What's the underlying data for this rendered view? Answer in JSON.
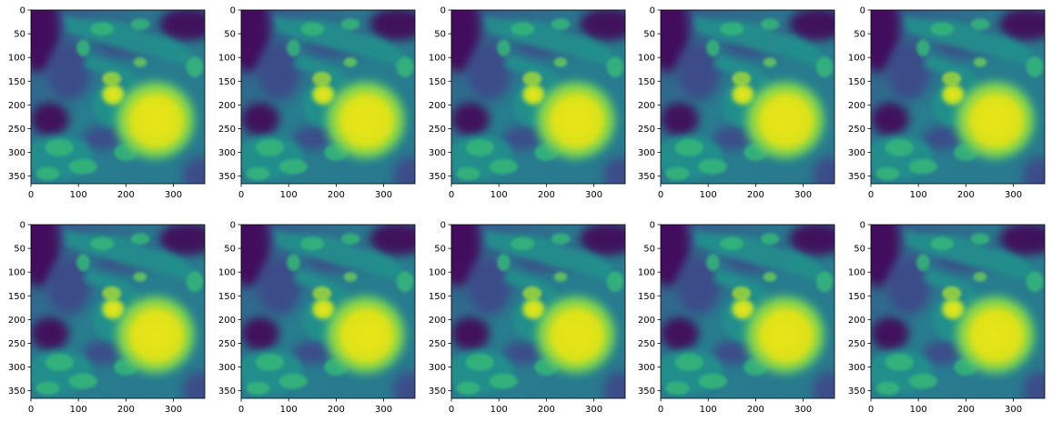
{
  "figure": {
    "layout": {
      "rows": 2,
      "cols": 5
    },
    "colormap": "viridis",
    "colors": {
      "low": "#440154",
      "mid_low": "#3b528b",
      "mid": "#21918c",
      "mid_high": "#5ec962",
      "high": "#fde725",
      "axis": "#000000",
      "background": "#ffffff"
    }
  },
  "chart_data": [
    {
      "type": "heatmap",
      "xticks": [
        0,
        100,
        200,
        300
      ],
      "yticks": [
        0,
        50,
        100,
        150,
        200,
        250,
        300,
        350
      ],
      "xlim": [
        0,
        366
      ],
      "ylim": [
        366,
        0
      ],
      "grid": false
    },
    {
      "type": "heatmap",
      "xticks": [
        0,
        100,
        200,
        300
      ],
      "yticks": [
        0,
        50,
        100,
        150,
        200,
        250,
        300,
        350
      ],
      "xlim": [
        0,
        366
      ],
      "ylim": [
        366,
        0
      ],
      "grid": false
    },
    {
      "type": "heatmap",
      "xticks": [
        0,
        100,
        200,
        300
      ],
      "yticks": [
        0,
        50,
        100,
        150,
        200,
        250,
        300,
        350
      ],
      "xlim": [
        0,
        366
      ],
      "ylim": [
        366,
        0
      ],
      "grid": false
    },
    {
      "type": "heatmap",
      "xticks": [
        0,
        100,
        200,
        300
      ],
      "yticks": [
        0,
        50,
        100,
        150,
        200,
        250,
        300,
        350
      ],
      "xlim": [
        0,
        366
      ],
      "ylim": [
        366,
        0
      ],
      "grid": false
    },
    {
      "type": "heatmap",
      "xticks": [
        0,
        100,
        200,
        300
      ],
      "yticks": [
        0,
        50,
        100,
        150,
        200,
        250,
        300,
        350
      ],
      "xlim": [
        0,
        366
      ],
      "ylim": [
        366,
        0
      ],
      "grid": false
    },
    {
      "type": "heatmap",
      "xticks": [
        0,
        100,
        200,
        300
      ],
      "yticks": [
        0,
        50,
        100,
        150,
        200,
        250,
        300,
        350
      ],
      "xlim": [
        0,
        366
      ],
      "ylim": [
        366,
        0
      ],
      "grid": false
    },
    {
      "type": "heatmap",
      "xticks": [
        0,
        100,
        200,
        300
      ],
      "yticks": [
        0,
        50,
        100,
        150,
        200,
        250,
        300,
        350
      ],
      "xlim": [
        0,
        366
      ],
      "ylim": [
        366,
        0
      ],
      "grid": false
    },
    {
      "type": "heatmap",
      "xticks": [
        0,
        100,
        200,
        300
      ],
      "yticks": [
        0,
        50,
        100,
        150,
        200,
        250,
        300,
        350
      ],
      "xlim": [
        0,
        366
      ],
      "ylim": [
        366,
        0
      ],
      "grid": false
    },
    {
      "type": "heatmap",
      "xticks": [
        0,
        100,
        200,
        300
      ],
      "yticks": [
        0,
        50,
        100,
        150,
        200,
        250,
        300,
        350
      ],
      "xlim": [
        0,
        366
      ],
      "ylim": [
        366,
        0
      ],
      "grid": false
    },
    {
      "type": "heatmap",
      "xticks": [
        0,
        100,
        200,
        300
      ],
      "yticks": [
        0,
        50,
        100,
        150,
        200,
        250,
        300,
        350
      ],
      "xlim": [
        0,
        366
      ],
      "ylim": [
        366,
        0
      ],
      "grid": false
    }
  ]
}
